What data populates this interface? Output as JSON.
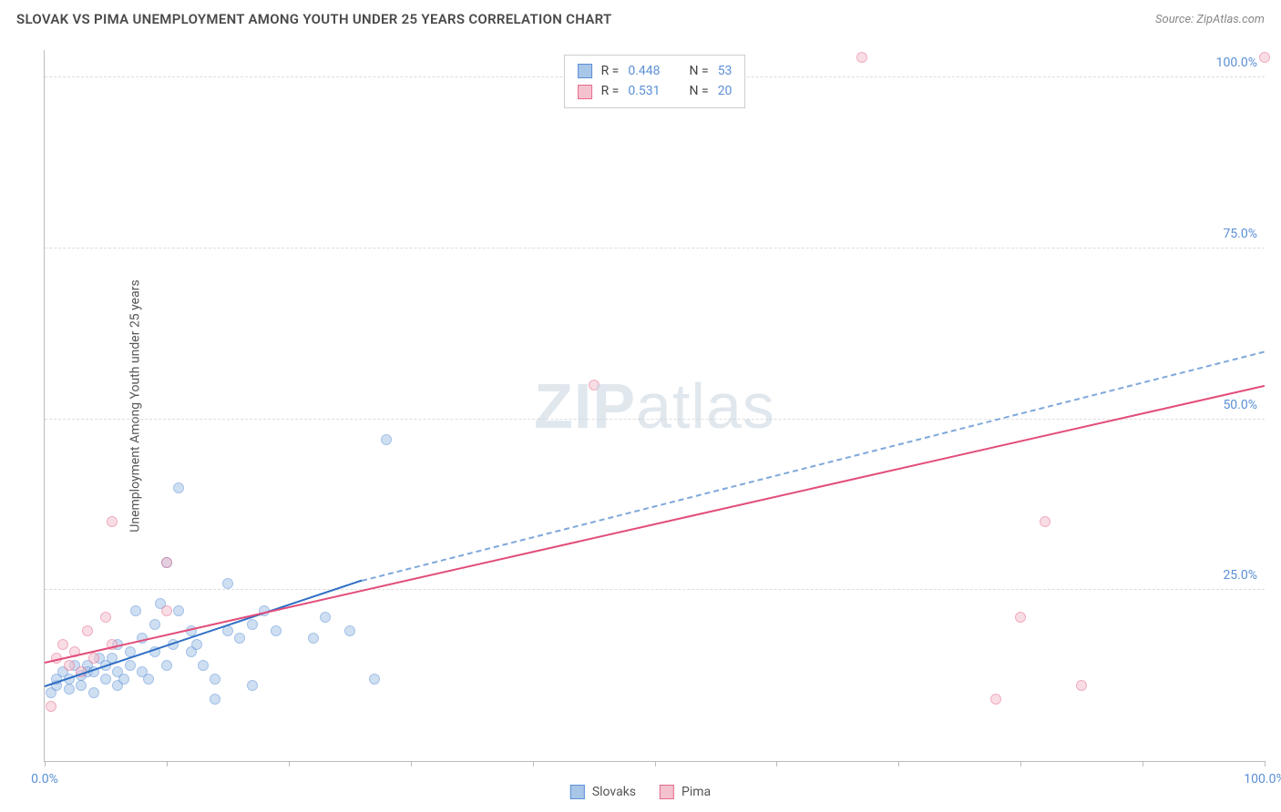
{
  "header": {
    "title": "SLOVAK VS PIMA UNEMPLOYMENT AMONG YOUTH UNDER 25 YEARS CORRELATION CHART",
    "source": "Source: ZipAtlas.com"
  },
  "chart": {
    "type": "scatter",
    "y_axis_label": "Unemployment Among Youth under 25 years",
    "xlim": [
      0,
      100
    ],
    "ylim": [
      0,
      104
    ],
    "x_ticks": [
      0,
      10,
      20,
      30,
      40,
      50,
      60,
      70,
      80,
      90,
      100
    ],
    "x_tick_labels_visible": {
      "0": "0.0%",
      "100": "100.0%"
    },
    "y_ticks": [
      25,
      50,
      75,
      100
    ],
    "y_tick_labels": {
      "25": "25.0%",
      "50": "50.0%",
      "75": "75.0%",
      "100": "100.0%"
    },
    "background_color": "#ffffff",
    "grid_color": "#dddddd",
    "tick_label_color": "#5b8fd6",
    "axis_label_color": "#555555",
    "marker_size": 12,
    "watermark_text_bold": "ZIP",
    "watermark_text_light": "atlas",
    "watermark_color": "#c8d4e0",
    "series": [
      {
        "name": "Slovaks",
        "fill_color": "#a8c6e8",
        "stroke_color": "#5b8fd6",
        "fill_opacity": 0.55,
        "regression": {
          "solid_from": [
            0,
            11
          ],
          "solid_to": [
            26,
            26.5
          ],
          "dashed_from": [
            26,
            26.5
          ],
          "dashed_to": [
            100,
            60
          ],
          "solid_color": "#2e6fc4",
          "dashed_color": "#7fa8da",
          "line_width": 2
        },
        "points": [
          [
            0.5,
            10
          ],
          [
            1,
            11
          ],
          [
            1,
            12
          ],
          [
            1.5,
            13
          ],
          [
            2,
            10.5
          ],
          [
            2,
            12
          ],
          [
            2.5,
            14
          ],
          [
            3,
            11
          ],
          [
            3,
            12.5
          ],
          [
            3.5,
            14
          ],
          [
            3.5,
            13
          ],
          [
            4,
            10
          ],
          [
            4,
            13
          ],
          [
            4.5,
            15
          ],
          [
            5,
            12
          ],
          [
            5,
            14
          ],
          [
            5.5,
            15
          ],
          [
            6,
            11
          ],
          [
            6,
            13
          ],
          [
            6,
            17
          ],
          [
            6.5,
            12
          ],
          [
            7,
            16
          ],
          [
            7,
            14
          ],
          [
            7.5,
            22
          ],
          [
            8,
            13
          ],
          [
            8,
            18
          ],
          [
            8.5,
            12
          ],
          [
            9,
            20
          ],
          [
            9,
            16
          ],
          [
            9.5,
            23
          ],
          [
            10,
            14
          ],
          [
            10,
            29
          ],
          [
            10.5,
            17
          ],
          [
            11,
            40
          ],
          [
            11,
            22
          ],
          [
            12,
            16
          ],
          [
            12,
            19
          ],
          [
            12.5,
            17
          ],
          [
            13,
            14
          ],
          [
            14,
            9
          ],
          [
            14,
            12
          ],
          [
            15,
            26
          ],
          [
            15,
            19
          ],
          [
            16,
            18
          ],
          [
            17,
            20
          ],
          [
            17,
            11
          ],
          [
            18,
            22
          ],
          [
            19,
            19
          ],
          [
            22,
            18
          ],
          [
            23,
            21
          ],
          [
            25,
            19
          ],
          [
            27,
            12
          ],
          [
            28,
            47
          ]
        ]
      },
      {
        "name": "Pima",
        "fill_color": "#f4c2ce",
        "stroke_color": "#e66a8d",
        "fill_opacity": 0.55,
        "regression": {
          "solid_from": [
            0,
            14.5
          ],
          "solid_to": [
            100,
            55
          ],
          "solid_color": "#e24d7a",
          "line_width": 2
        },
        "points": [
          [
            0.5,
            8
          ],
          [
            1,
            15
          ],
          [
            1.5,
            17
          ],
          [
            2,
            14
          ],
          [
            2.5,
            16
          ],
          [
            3,
            13
          ],
          [
            3.5,
            19
          ],
          [
            4,
            15
          ],
          [
            5,
            21
          ],
          [
            5.5,
            17
          ],
          [
            5.5,
            35
          ],
          [
            10,
            29
          ],
          [
            10,
            22
          ],
          [
            45,
            55
          ],
          [
            67,
            103
          ],
          [
            78,
            9
          ],
          [
            80,
            21
          ],
          [
            82,
            35
          ],
          [
            85,
            11
          ],
          [
            100,
            103
          ]
        ]
      }
    ]
  },
  "stats_legend": {
    "rows": [
      {
        "series": "Slovaks",
        "r_label": "R =",
        "r_value": "0.448",
        "n_label": "N =",
        "n_value": "53"
      },
      {
        "series": "Pima",
        "r_label": "R =",
        "r_value": "0.531",
        "n_label": "N =",
        "n_value": "20"
      }
    ]
  },
  "bottom_legend": {
    "items": [
      {
        "label": "Slovaks",
        "fill": "#a8c6e8",
        "stroke": "#5b8fd6"
      },
      {
        "label": "Pima",
        "fill": "#f4c2ce",
        "stroke": "#e66a8d"
      }
    ]
  }
}
